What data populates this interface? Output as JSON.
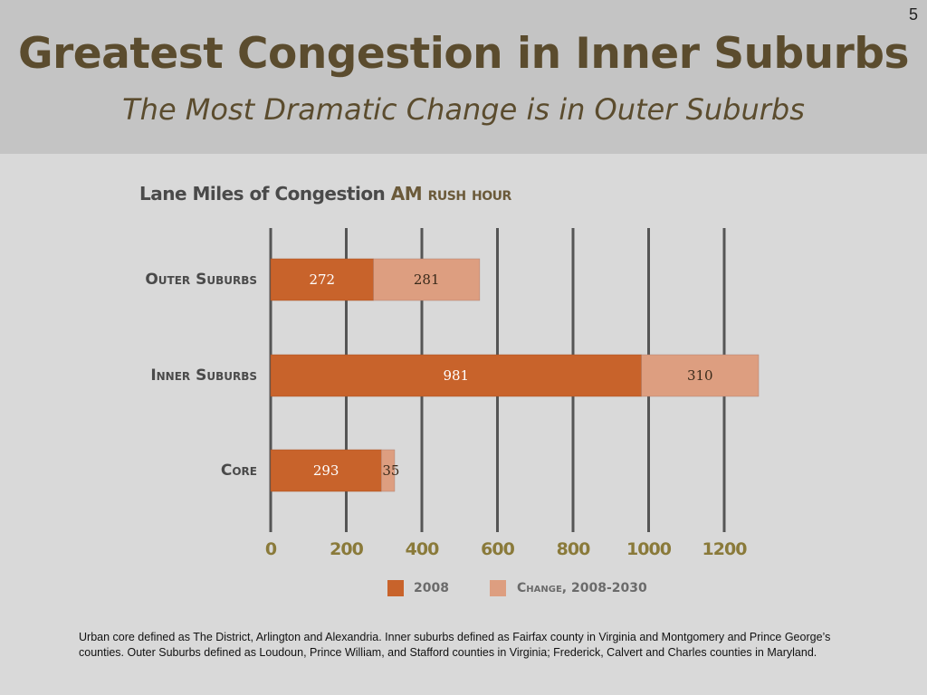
{
  "slide": {
    "number": "5",
    "title": "Greatest Congestion in Inner Suburbs",
    "subtitle": "The Most Dramatic Change is in Outer Suburbs"
  },
  "chart_title": {
    "main": "Lane Miles of Congestion",
    "am": "AM",
    "rest": "rush hour"
  },
  "colors": {
    "series_2008": "#c8632b",
    "series_change": "#dd9e80",
    "grid": "#555555",
    "tick_label": "#8a7a3a",
    "category_label": "#4a4a4a"
  },
  "chart_data": {
    "type": "bar",
    "orientation": "horizontal",
    "stacked": true,
    "title": "Lane Miles of Congestion AM rush hour",
    "categories": [
      "Outer Suburbs",
      "Inner Suburbs",
      "Core"
    ],
    "series": [
      {
        "name": "2008",
        "values": [
          272,
          981,
          293
        ]
      },
      {
        "name": "Change, 2008-2030",
        "values": [
          281,
          310,
          35
        ]
      }
    ],
    "xlim": [
      0,
      1200
    ],
    "xticks": [
      0,
      200,
      400,
      600,
      800,
      1000,
      1200
    ],
    "grid": true,
    "legend": "bottom"
  },
  "footnote": "Urban core defined as The District, Arlington and Alexandria.  Inner suburbs defined as Fairfax county in Virginia and Montgomery and Prince George’s counties.  Outer Suburbs defined as Loudoun, Prince William, and Stafford counties in Virginia; Frederick, Calvert and Charles counties in Maryland."
}
